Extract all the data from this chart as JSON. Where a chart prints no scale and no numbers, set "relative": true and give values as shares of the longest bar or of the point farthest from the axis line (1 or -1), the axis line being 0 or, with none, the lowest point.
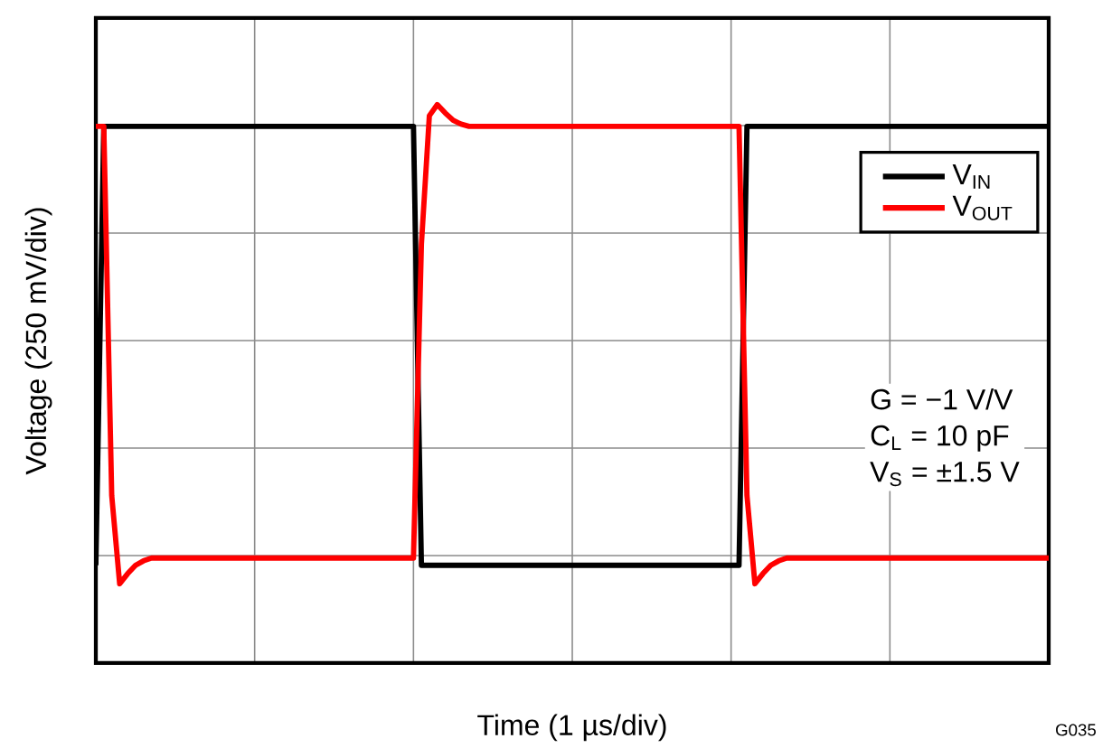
{
  "chart_data": {
    "type": "line",
    "relative": true,
    "xlabel": "Time (1 µs/div)",
    "ylabel": "Voltage (250 mV/div)",
    "categories": [
      null,
      null,
      null,
      null,
      null,
      null,
      null,
      null,
      null,
      null,
      null,
      null,
      null,
      null,
      null,
      null,
      null,
      null,
      null,
      null,
      null,
      null,
      null,
      null,
      null,
      null,
      null,
      null,
      null,
      null,
      null,
      null,
      null,
      null,
      null,
      null,
      null,
      null,
      null,
      null,
      null,
      null,
      null,
      null,
      null,
      null,
      null,
      null,
      null,
      null,
      null,
      null,
      null,
      null,
      null,
      null,
      null,
      null,
      null,
      null,
      null,
      null,
      null,
      null,
      null,
      null,
      null,
      null,
      null,
      null,
      null,
      null,
      null,
      null,
      null,
      null,
      null,
      null,
      null,
      null,
      null,
      null,
      null,
      null,
      null,
      null,
      null,
      null,
      null,
      null,
      null,
      null,
      null,
      null,
      null,
      null,
      null,
      null,
      null,
      null,
      null,
      null,
      null,
      null,
      null,
      null,
      null,
      null,
      null,
      null,
      null,
      null,
      null,
      null,
      null,
      null,
      null,
      null,
      null,
      null,
      null
    ],
    "series": [
      {
        "name": "V$_{IN}$",
        "color": "#000000",
        "values": [
          0.175,
          0.961,
          0.961,
          0.961,
          0.961,
          0.961,
          0.961,
          0.961,
          0.961,
          0.961,
          0.961,
          0.961,
          0.961,
          0.961,
          0.961,
          0.961,
          0.961,
          0.961,
          0.961,
          0.961,
          0.961,
          0.961,
          0.961,
          0.961,
          0.961,
          0.961,
          0.961,
          0.961,
          0.961,
          0.961,
          0.961,
          0.961,
          0.961,
          0.961,
          0.961,
          0.961,
          0.961,
          0.961,
          0.961,
          0.961,
          0.961,
          0.175,
          0.175,
          0.175,
          0.175,
          0.175,
          0.175,
          0.175,
          0.175,
          0.175,
          0.175,
          0.175,
          0.175,
          0.175,
          0.175,
          0.175,
          0.175,
          0.175,
          0.175,
          0.175,
          0.175,
          0.175,
          0.175,
          0.175,
          0.175,
          0.175,
          0.175,
          0.175,
          0.175,
          0.175,
          0.175,
          0.175,
          0.175,
          0.175,
          0.175,
          0.175,
          0.175,
          0.175,
          0.175,
          0.175,
          0.175,
          0.175,
          0.961,
          0.961,
          0.961,
          0.961,
          0.961,
          0.961,
          0.961,
          0.961,
          0.961,
          0.961,
          0.961,
          0.961,
          0.961,
          0.961,
          0.961,
          0.961,
          0.961,
          0.961,
          0.961,
          0.961,
          0.961,
          0.961,
          0.961,
          0.961,
          0.961,
          0.961,
          0.961,
          0.961,
          0.961,
          0.961,
          0.961,
          0.961,
          0.961,
          0.961,
          0.961,
          0.961,
          0.961,
          0.961,
          0.961
        ]
      },
      {
        "name": "V$_{OUT}$",
        "color": "#ff0000",
        "values": [
          0.961,
          0.961,
          0.3,
          0.142,
          0.16,
          0.175,
          0.183,
          0.188,
          0.188,
          0.188,
          0.188,
          0.188,
          0.188,
          0.188,
          0.188,
          0.188,
          0.188,
          0.188,
          0.188,
          0.188,
          0.188,
          0.188,
          0.188,
          0.188,
          0.188,
          0.188,
          0.188,
          0.188,
          0.188,
          0.188,
          0.188,
          0.188,
          0.188,
          0.188,
          0.188,
          0.188,
          0.188,
          0.188,
          0.188,
          0.188,
          0.188,
          0.75,
          0.98,
          1.0,
          0.985,
          0.972,
          0.965,
          0.961,
          0.961,
          0.961,
          0.961,
          0.961,
          0.961,
          0.961,
          0.961,
          0.961,
          0.961,
          0.961,
          0.961,
          0.961,
          0.961,
          0.961,
          0.961,
          0.961,
          0.961,
          0.961,
          0.961,
          0.961,
          0.961,
          0.961,
          0.961,
          0.961,
          0.961,
          0.961,
          0.961,
          0.961,
          0.961,
          0.961,
          0.961,
          0.961,
          0.961,
          0.961,
          0.3,
          0.142,
          0.16,
          0.175,
          0.183,
          0.188,
          0.188,
          0.188,
          0.188,
          0.188,
          0.188,
          0.188,
          0.188,
          0.188,
          0.188,
          0.188,
          0.188,
          0.188,
          0.188,
          0.188,
          0.188,
          0.188,
          0.188,
          0.188,
          0.188,
          0.188,
          0.188,
          0.188,
          0.188,
          0.188,
          0.188,
          0.188,
          0.188,
          0.188,
          0.188,
          0.188,
          0.188,
          0.188,
          0.188
        ]
      }
    ],
    "annotations": [
      "G = −1 V/V",
      "C$_{L}$ = 10 pF",
      "V$_{S}$ = ±1.5 V",
      "G035"
    ],
    "grid": true,
    "legend": "right",
    "tick_labels": false,
    "marker": "none",
    "line_style": "solid"
  }
}
